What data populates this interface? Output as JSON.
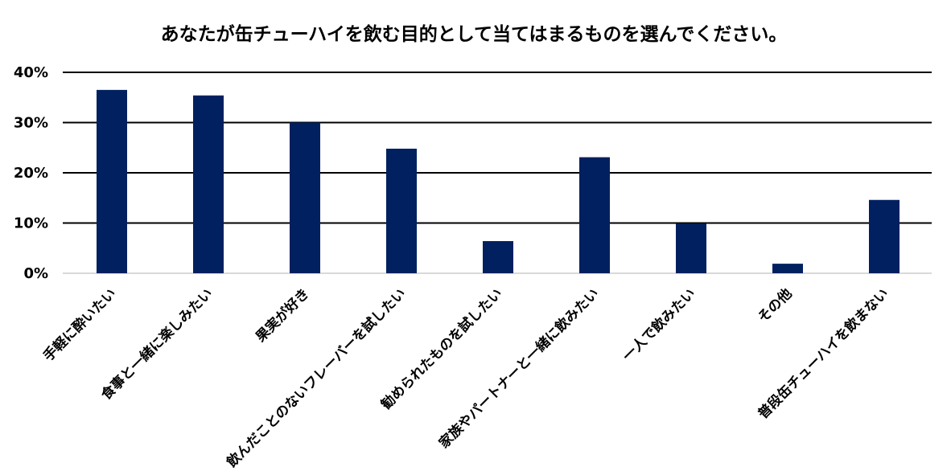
{
  "chart_data": {
    "type": "bar",
    "title": "あなたが缶チューハイを飲む目的として当てはまるものを選んでください。",
    "xlabel": "",
    "ylabel": "",
    "categories": [
      "手軽に酔いたい",
      "食事と一緒に楽しみたい",
      "果実が好き",
      "飲んだことのないフレーバーを試したい",
      "勧められたものを試したい",
      "家族やパートナーと一緒に飲みたい",
      "一人で飲みたい",
      "その他",
      "普段缶チューハイを飲まない"
    ],
    "values": [
      36.5,
      35.4,
      30.0,
      24.8,
      6.4,
      23.1,
      9.9,
      1.9,
      14.6
    ],
    "ylim": [
      0,
      40
    ],
    "yticks": [
      "0%",
      "10%",
      "20%",
      "30%",
      "40%"
    ],
    "ytick_values": [
      0,
      10,
      20,
      30,
      40
    ],
    "grid": true,
    "legend": "none",
    "colors": {
      "bar": "#002060",
      "grid": "#000000",
      "axis": "#d9d9d9"
    }
  }
}
